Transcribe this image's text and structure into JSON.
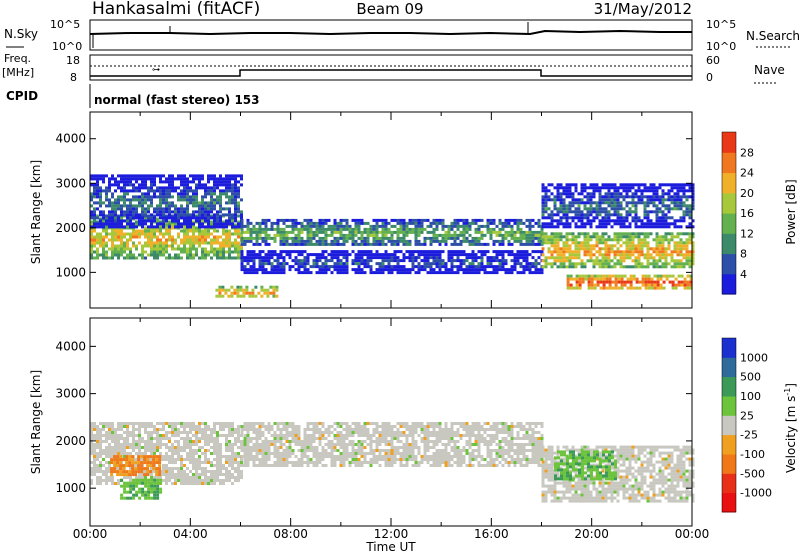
{
  "header": {
    "station": "Hankasalmi (fitACF)",
    "beam": "Beam 09",
    "date": "31/May/2012"
  },
  "top_panels": {
    "nsky_label": "N.Sky",
    "nsky_ticks": [
      "10^5",
      "10^0"
    ],
    "nsearch_label": "N.Search",
    "freq_label_1": "Freq.",
    "freq_label_2": "[MHz]",
    "freq_ticks": [
      "18",
      "8"
    ],
    "nave_label": "Nave",
    "nave_ticks": [
      "60",
      "0"
    ],
    "cpid_label": "CPID",
    "cpid_text": "normal (fast stereo) 153"
  },
  "chart_data": [
    {
      "type": "heatmap",
      "name": "power",
      "ylabel": "Slant Range [km]",
      "xlabel": "Time UT",
      "x_ticks": [
        "00:00",
        "04:00",
        "08:00",
        "12:00",
        "16:00",
        "20:00",
        "00:00"
      ],
      "xlim_hours": [
        0,
        24
      ],
      "y_ticks": [
        1000,
        2000,
        3000,
        4000
      ],
      "ylim": [
        200,
        4600
      ],
      "colorbar": {
        "label": "Power [dB]",
        "ticks": [
          4,
          8,
          12,
          16,
          20,
          24,
          28
        ],
        "range": [
          0,
          32
        ],
        "colors": [
          "#1c1cdc",
          "#2e4fa8",
          "#3c8a6a",
          "#63b04e",
          "#a8c83c",
          "#f0b02a",
          "#f07820",
          "#e83818"
        ]
      },
      "features": [
        {
          "t": [
            0.0,
            6.0
          ],
          "range_km": [
            1300,
            2300
          ],
          "level_db": 22
        },
        {
          "t": [
            0.0,
            6.0
          ],
          "range_km": [
            2000,
            3200
          ],
          "level_db": 9
        },
        {
          "t": [
            5.0,
            7.5
          ],
          "range_km": [
            450,
            700
          ],
          "level_db": 26
        },
        {
          "t": [
            6.0,
            18.0
          ],
          "range_km": [
            1600,
            2200
          ],
          "level_db": 15
        },
        {
          "t": [
            6.0,
            18.0
          ],
          "range_km": [
            1000,
            1500
          ],
          "level_db": 7
        },
        {
          "t": [
            18.0,
            24.0
          ],
          "range_km": [
            1100,
            1900
          ],
          "level_db": 24
        },
        {
          "t": [
            18.0,
            24.0
          ],
          "range_km": [
            2000,
            3000
          ],
          "level_db": 9
        },
        {
          "t": [
            19.0,
            24.0
          ],
          "range_km": [
            650,
            950
          ],
          "level_db": 30
        }
      ]
    },
    {
      "type": "heatmap",
      "name": "velocity",
      "ylabel": "Slant Range [km]",
      "xlabel": "Time UT",
      "x_ticks": [
        "00:00",
        "04:00",
        "08:00",
        "12:00",
        "16:00",
        "20:00",
        "00:00"
      ],
      "xlim_hours": [
        0,
        24
      ],
      "y_ticks": [
        1000,
        2000,
        3000,
        4000
      ],
      "ylim": [
        200,
        4600
      ],
      "colorbar": {
        "label": "Velocity [m s",
        "label_exp": "-1",
        "label_end": "]",
        "ticks": [
          "1000",
          "500",
          "100",
          "25",
          "-25",
          "-100",
          "-500",
          "-1000"
        ],
        "colors": [
          "#1c30d0",
          "#2e6a9a",
          "#3c9a58",
          "#6cc43c",
          "#c8c8c0",
          "#f0a020",
          "#f07818",
          "#e83018",
          "#e81010"
        ]
      },
      "features": [
        {
          "t": [
            0.0,
            6.0
          ],
          "range_km": [
            1100,
            2400
          ],
          "class": "ground"
        },
        {
          "t": [
            0.8,
            2.8
          ],
          "range_km": [
            1300,
            1700
          ],
          "class": "-100"
        },
        {
          "t": [
            1.2,
            2.8
          ],
          "range_km": [
            800,
            1200
          ],
          "class": "100"
        },
        {
          "t": [
            6.0,
            18.0
          ],
          "range_km": [
            1500,
            2400
          ],
          "class": "ground"
        },
        {
          "t": [
            18.0,
            24.0
          ],
          "range_km": [
            700,
            1900
          ],
          "class": "ground"
        },
        {
          "t": [
            18.5,
            21.0
          ],
          "range_km": [
            1200,
            1800
          ],
          "class": "100"
        }
      ]
    }
  ]
}
